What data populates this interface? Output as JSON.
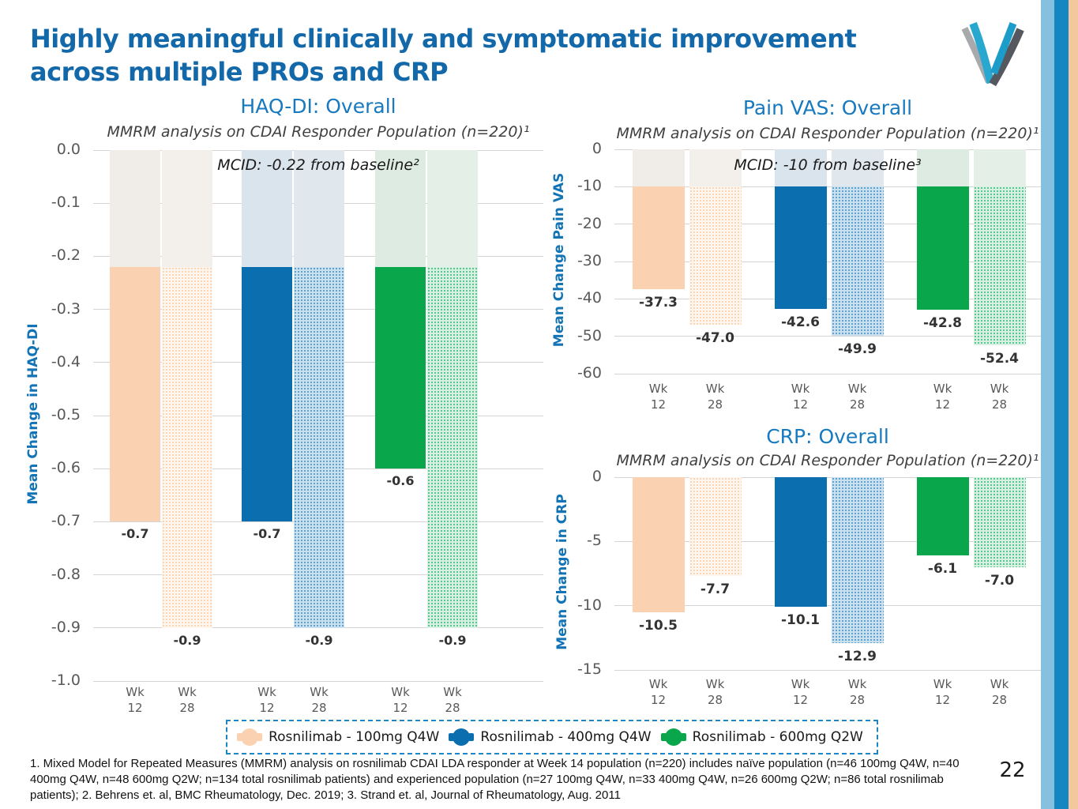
{
  "header": {
    "title_line1": "Highly meaningful clinically and symptomatic improvement",
    "title_line2": "across multiple PROs and CRP"
  },
  "footer": {
    "page_number": "22"
  },
  "footnotes": {
    "text": "1. Mixed Model for Repeated Measures (MMRM) analysis on rosnilimab CDAI LDA responder at Week 14 population (n=220) includes naïve population (n=46 100mg Q4W, n=40 400mg Q4W, n=48 600mg Q2W; n=134 total rosnilimab patients) and experienced population (n=27 100mg Q4W, n=33 400mg Q4W, n=26 600mg Q2W; n=86 total rosnilimab patients); 2. Behrens et. al, BMC Rheumatology, Dec. 2019; 3. Strand et. al, Journal of Rheumatology, Aug. 2011"
  },
  "legend": {
    "items": [
      {
        "label": "Rosnilimab - 100mg Q4W",
        "color": "#FAD2B1"
      },
      {
        "label": "Rosnilimab - 400mg Q4W",
        "color": "#0B6EAF"
      },
      {
        "label": "Rosnilimab - 600mg Q2W",
        "color": "#0AA64B"
      }
    ]
  },
  "colors": {
    "title_blue": "#1268A8",
    "chart_title_blue": "#1779BE",
    "axis_blue": "#1273B5",
    "orange": "#FAD2B1",
    "blue": "#0B6EAF",
    "green": "#0AA64B",
    "ghost_orange": "#F0EDE8",
    "ghost_blue": "#DAE4ED",
    "ghost_green": "#DDEBE2",
    "ghost_orange2": "#F3F0EB",
    "ghost_blue2": "#E0E8EE",
    "ghost_green2": "#E4EFE8",
    "orange_hatch_bg": "#FEF6EE",
    "orange_hatch_dot": "#F7CBA4",
    "blue_hatch_bg": "#CBE1F0",
    "blue_hatch_dot": "#3D8DC4",
    "green_hatch_bg": "#D6F0E1",
    "green_hatch_dot": "#2FB571",
    "grid": "#D5D3D3",
    "tick": "#595959",
    "legend_border": "#1E86C3",
    "stripe_light_blue": "#85C0DE",
    "stripe_dark_blue": "#1486C2",
    "stripe_peach": "#F4C89E",
    "logo_teal": "#29A8CF",
    "logo_teal2": "#1B9CC9",
    "logo_gray": "#A7A9AC",
    "logo_dark": "#55585E"
  },
  "chart_data": [
    {
      "id": "haqdi",
      "type": "bar",
      "title": "HAQ-DI: Overall",
      "subtitle": "MMRM analysis on CDAI Responder Population (n=220)¹",
      "annotation": "MCID: -0.22 from baseline²",
      "ylabel": "Mean Change in HAQ-DI",
      "ylim": [
        0,
        -1.0
      ],
      "ytick_step": 0.1,
      "ytick_decimals": 1,
      "mcid": -0.22,
      "grid": true,
      "categories": [
        "Wk 12",
        "Wk 28"
      ],
      "series": [
        {
          "name": "Rosnilimab - 100mg Q4W",
          "values": [
            -0.7,
            -0.9
          ],
          "labels": [
            "-0.7",
            "-0.9"
          ]
        },
        {
          "name": "Rosnilimab - 400mg Q4W",
          "values": [
            -0.7,
            -0.9
          ],
          "labels": [
            "-0.7",
            "-0.9"
          ]
        },
        {
          "name": "Rosnilimab - 600mg Q2W",
          "values": [
            -0.6,
            -0.9
          ],
          "labels": [
            "-0.6",
            "-0.9"
          ]
        }
      ]
    },
    {
      "id": "pain",
      "type": "bar",
      "title": "Pain VAS: Overall",
      "subtitle": "MMRM analysis on CDAI Responder Population (n=220)¹",
      "annotation": "MCID: -10 from baseline³",
      "ylabel": "Mean Change Pain VAS",
      "ylim": [
        0,
        -60
      ],
      "ytick_step": 10,
      "ytick_decimals": 0,
      "mcid": -10,
      "grid": true,
      "categories": [
        "Wk 12",
        "Wk 28"
      ],
      "series": [
        {
          "name": "Rosnilimab - 100mg Q4W",
          "values": [
            -37.3,
            -47.0
          ],
          "labels": [
            "-37.3",
            "-47.0"
          ]
        },
        {
          "name": "Rosnilimab - 400mg Q4W",
          "values": [
            -42.6,
            -49.9
          ],
          "labels": [
            "-42.6",
            "-49.9"
          ]
        },
        {
          "name": "Rosnilimab - 600mg Q2W",
          "values": [
            -42.8,
            -52.4
          ],
          "labels": [
            "-42.8",
            "-52.4"
          ]
        }
      ]
    },
    {
      "id": "crp",
      "type": "bar",
      "title": "CRP: Overall",
      "subtitle": "MMRM analysis on CDAI Responder Population (n=220)¹",
      "annotation": null,
      "ylabel": "Mean Change in CRP",
      "ylim": [
        0,
        -15
      ],
      "ytick_step": 5,
      "ytick_decimals": 0,
      "mcid": null,
      "grid": true,
      "categories": [
        "Wk 12",
        "Wk 28"
      ],
      "series": [
        {
          "name": "Rosnilimab - 100mg Q4W",
          "values": [
            -10.5,
            -7.7
          ],
          "labels": [
            "-10.5",
            "-7.7"
          ]
        },
        {
          "name": "Rosnilimab - 400mg Q4W",
          "values": [
            -10.1,
            -12.9
          ],
          "labels": [
            "-10.1",
            "-12.9"
          ]
        },
        {
          "name": "Rosnilimab - 600mg Q2W",
          "values": [
            -6.1,
            -7.0
          ],
          "labels": [
            "-6.1",
            "-7.0"
          ]
        }
      ]
    }
  ]
}
